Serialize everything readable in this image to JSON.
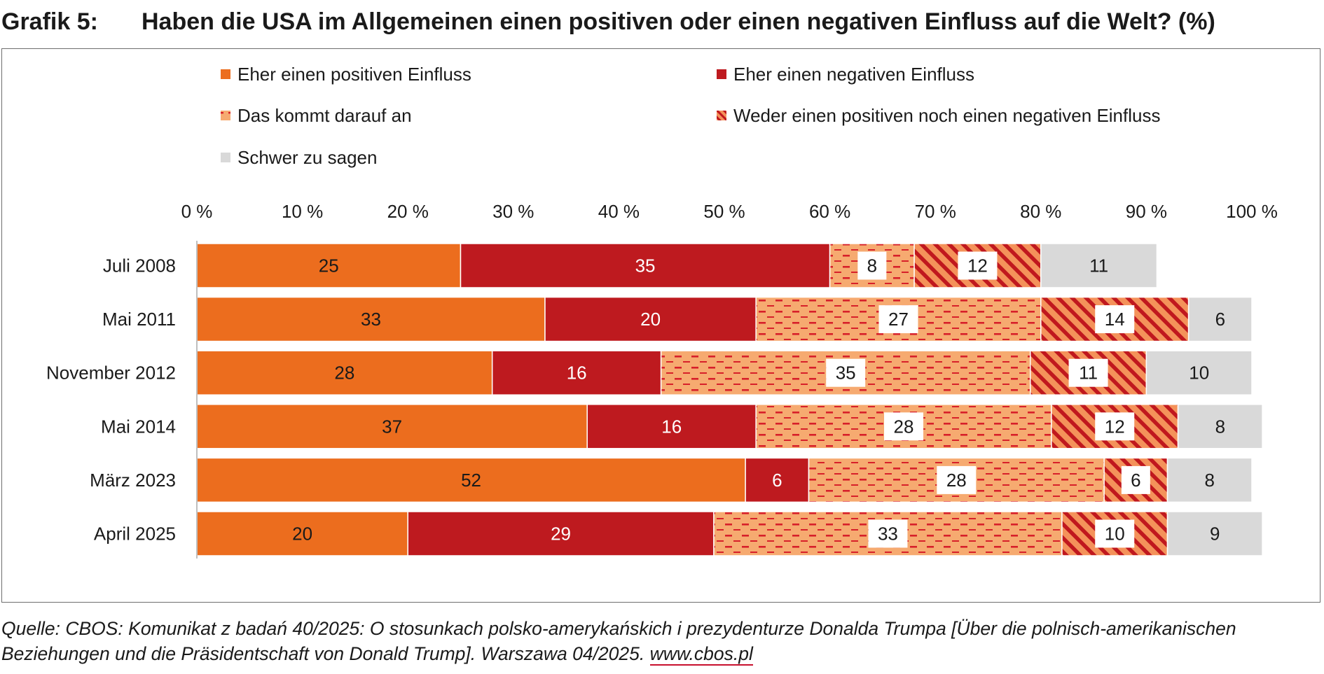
{
  "header": {
    "label": "Grafik 5:",
    "title": "Haben die USA im Allgemeinen einen positiven oder einen negativen Einfluss auf die Welt? (%)"
  },
  "colors": {
    "positive": "#ec6d1e",
    "negative": "#be1a1f",
    "depends_bg": "#f6aa70",
    "depends_dash": "#d7202a",
    "neither_bg": "#f4925a",
    "neither_stripe": "#c0181e",
    "unsure": "#d9d9d9",
    "axis": "#bfbfbf",
    "link_underline": "#c8102e"
  },
  "chart_data": {
    "type": "bar",
    "orientation": "horizontal",
    "stacked": true,
    "title": "Haben die USA im Allgemeinen einen positiven oder einen negativen Einfluss auf die Welt? (%)",
    "xlabel": "",
    "ylabel": "",
    "xlim": [
      0,
      100
    ],
    "x_ticks": [
      "0 %",
      "10 %",
      "20 %",
      "30 %",
      "40 %",
      "50 %",
      "60 %",
      "70 %",
      "80 %",
      "90 %",
      "100 %"
    ],
    "legend_position": "top",
    "categories": [
      "Juli 2008",
      "Mai 2011",
      "November 2012",
      "Mai 2014",
      "März 2023",
      "April 2025"
    ],
    "series": [
      {
        "name": "Eher einen positiven Einfluss",
        "key": "positive",
        "values": [
          25,
          33,
          28,
          37,
          52,
          20
        ]
      },
      {
        "name": "Eher einen negativen Einfluss",
        "key": "negative",
        "values": [
          35,
          20,
          16,
          16,
          6,
          29
        ]
      },
      {
        "name": "Das kommt darauf an",
        "key": "depends",
        "values": [
          8,
          27,
          35,
          28,
          28,
          33
        ]
      },
      {
        "name": "Weder einen positiven noch einen negativen Einfluss",
        "key": "neither",
        "values": [
          12,
          14,
          11,
          12,
          6,
          10
        ]
      },
      {
        "name": "Schwer zu sagen",
        "key": "unsure",
        "values": [
          11,
          6,
          10,
          8,
          8,
          9
        ]
      }
    ]
  },
  "source": {
    "line1": "Quelle: CBOS: Komunikat z badań 40/2025: O stosunkach polsko-amerykańskich i prezydenturze Donalda Trumpa [Über die polnisch-amerikanischen",
    "line2": "Beziehungen und die Präsidentschaft von Donald Trump]. Warszawa 04/2025. ",
    "link": "www.cbos.pl"
  }
}
